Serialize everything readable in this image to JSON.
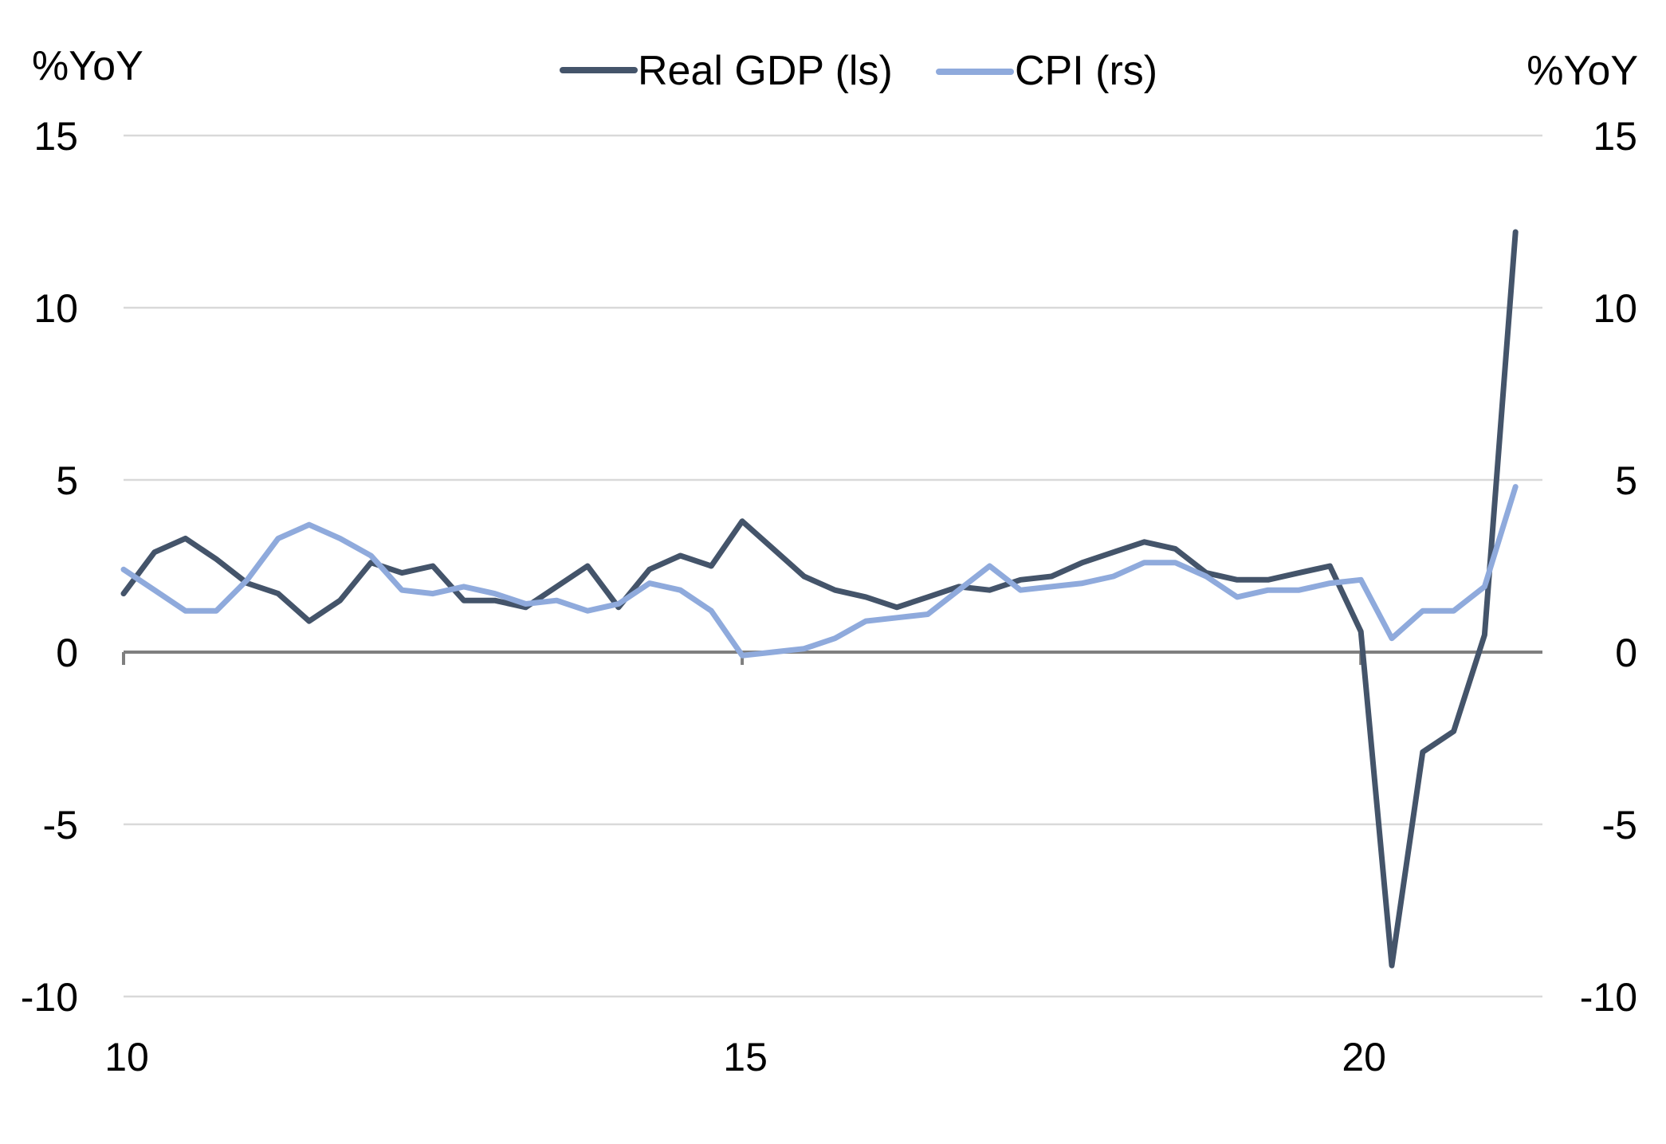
{
  "chart_data": {
    "type": "line",
    "left_axis": {
      "unit": "%YoY",
      "ylim": [
        -10,
        15
      ],
      "ticks": [
        "15",
        "10",
        "5",
        "0",
        "-5",
        "-10"
      ]
    },
    "right_axis": {
      "unit": "%YoY",
      "ylim": [
        -10,
        15
      ],
      "ticks": [
        "15",
        "10",
        "5",
        "0",
        "-5",
        "-10"
      ]
    },
    "x_axis": {
      "ticks": [
        "10",
        "15",
        "20"
      ],
      "tick_values": [
        2010,
        2015,
        2020
      ],
      "xlim": [
        2010,
        2021.5
      ]
    },
    "grid": true,
    "legend_position": "top",
    "series": [
      {
        "name": "Real GDP (ls)",
        "axis": "left",
        "color": "#44546a",
        "x": [
          2010.0,
          2010.25,
          2010.5,
          2010.75,
          2011.0,
          2011.25,
          2011.5,
          2011.75,
          2012.0,
          2012.25,
          2012.5,
          2012.75,
          2013.0,
          2013.25,
          2013.5,
          2013.75,
          2014.0,
          2014.25,
          2014.5,
          2014.75,
          2015.0,
          2015.25,
          2015.5,
          2015.75,
          2016.0,
          2016.25,
          2016.5,
          2016.75,
          2017.0,
          2017.25,
          2017.5,
          2017.75,
          2018.0,
          2018.25,
          2018.5,
          2018.75,
          2019.0,
          2019.25,
          2019.5,
          2019.75,
          2020.0,
          2020.25,
          2020.5,
          2020.75,
          2021.0,
          2021.25
        ],
        "values": [
          1.7,
          2.9,
          3.3,
          2.7,
          2.0,
          1.7,
          0.9,
          1.5,
          2.6,
          2.3,
          2.5,
          1.5,
          1.5,
          1.3,
          1.9,
          2.5,
          1.3,
          2.4,
          2.8,
          2.5,
          3.8,
          3.0,
          2.2,
          1.8,
          1.6,
          1.3,
          1.6,
          1.9,
          1.8,
          2.1,
          2.2,
          2.6,
          2.9,
          3.2,
          3.0,
          2.3,
          2.1,
          2.1,
          2.3,
          2.5,
          0.6,
          -9.1,
          -2.9,
          -2.3,
          0.5,
          12.2
        ]
      },
      {
        "name": "CPI (rs)",
        "axis": "right",
        "color": "#8faadc",
        "x": [
          2010.0,
          2010.25,
          2010.5,
          2010.75,
          2011.0,
          2011.25,
          2011.5,
          2011.75,
          2012.0,
          2012.25,
          2012.5,
          2012.75,
          2013.0,
          2013.25,
          2013.5,
          2013.75,
          2014.0,
          2014.25,
          2014.5,
          2014.75,
          2015.0,
          2015.25,
          2015.5,
          2015.75,
          2016.0,
          2016.25,
          2016.5,
          2016.75,
          2017.0,
          2017.25,
          2017.5,
          2017.75,
          2018.0,
          2018.25,
          2018.5,
          2018.75,
          2019.0,
          2019.25,
          2019.5,
          2019.75,
          2020.0,
          2020.25,
          2020.5,
          2020.75,
          2021.0,
          2021.25
        ],
        "values": [
          2.4,
          1.8,
          1.2,
          1.2,
          2.1,
          3.3,
          3.7,
          3.3,
          2.8,
          1.8,
          1.7,
          1.9,
          1.7,
          1.4,
          1.5,
          1.2,
          1.4,
          2.0,
          1.8,
          1.2,
          -0.1,
          0.0,
          0.1,
          0.4,
          0.9,
          1.0,
          1.1,
          1.8,
          2.5,
          1.8,
          1.9,
          2.0,
          2.2,
          2.6,
          2.6,
          2.2,
          1.6,
          1.8,
          1.8,
          2.0,
          2.1,
          0.4,
          1.2,
          1.2,
          1.9,
          4.8
        ]
      }
    ]
  }
}
